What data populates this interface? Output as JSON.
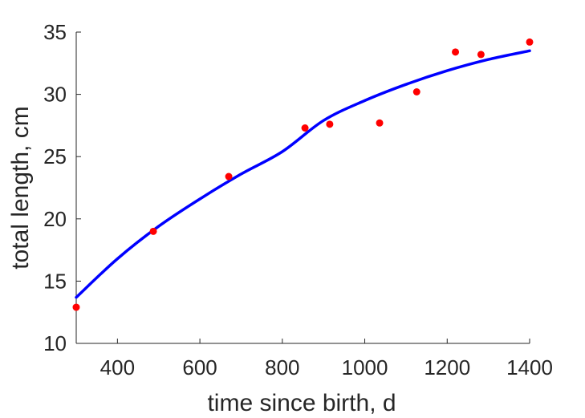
{
  "chart_data": {
    "type": "scatter",
    "title": "",
    "xlabel": "time since birth, d",
    "ylabel": "total length, cm",
    "xlim": [
      300,
      1400
    ],
    "ylim": [
      10,
      35
    ],
    "xticks": [
      400,
      600,
      800,
      1000,
      1200,
      1400
    ],
    "yticks": [
      10,
      15,
      20,
      25,
      30,
      35
    ],
    "grid": false,
    "legend": "none",
    "series": [
      {
        "kind": "points",
        "color": "#ff0000",
        "x": [
          300,
          487,
          670,
          855,
          915,
          1036,
          1126,
          1220,
          1282,
          1400
        ],
        "y": [
          12.9,
          19.0,
          23.4,
          27.3,
          27.6,
          27.7,
          30.2,
          33.4,
          33.2,
          34.2
        ]
      },
      {
        "kind": "fit-line",
        "color": "#0000ff",
        "x": [
          300,
          400,
          500,
          600,
          700,
          800,
          900,
          1000,
          1100,
          1200,
          1300,
          1400
        ],
        "y": [
          13.7,
          16.8,
          19.4,
          21.6,
          23.6,
          25.4,
          27.9,
          29.5,
          30.8,
          31.9,
          32.8,
          33.5
        ]
      }
    ]
  }
}
